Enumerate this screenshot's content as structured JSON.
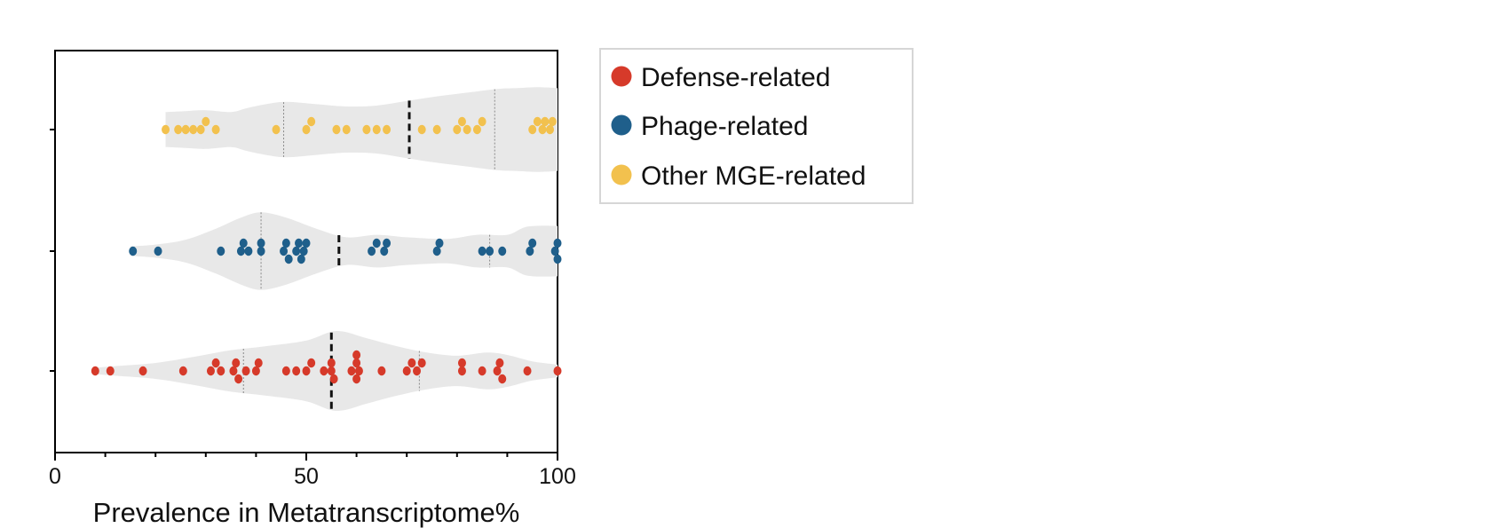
{
  "chart_data": {
    "type": "violin-swarm",
    "xlabel": "Prevalence in Metatranscriptome%",
    "ylabel": "",
    "xlim": [
      0,
      100
    ],
    "xticks": [
      "0",
      "50",
      "100"
    ],
    "grid": false,
    "legend_position": "right, outside plot",
    "series": [
      {
        "name": "Other MGE-related",
        "color": "#f2c14e",
        "median": 70.5,
        "q1": 45.5,
        "q3": 87.5,
        "points": [
          22,
          24.5,
          26,
          27.5,
          29,
          30,
          32,
          44,
          50,
          51,
          56,
          58,
          62,
          64,
          66,
          73,
          76,
          80,
          81,
          82,
          84,
          85,
          95,
          96,
          97,
          97.5,
          98.5,
          99
        ],
        "violin_profile": [
          [
            22,
            0.38
          ],
          [
            26,
            0.4
          ],
          [
            30,
            0.42
          ],
          [
            35,
            0.38
          ],
          [
            38,
            0.46
          ],
          [
            42,
            0.55
          ],
          [
            46,
            0.6
          ],
          [
            52,
            0.55
          ],
          [
            58,
            0.5
          ],
          [
            64,
            0.52
          ],
          [
            70,
            0.62
          ],
          [
            76,
            0.72
          ],
          [
            82,
            0.8
          ],
          [
            88,
            0.88
          ],
          [
            92,
            0.9
          ],
          [
            96,
            0.92
          ],
          [
            100,
            0.9
          ]
        ]
      },
      {
        "name": "Phage-related",
        "color": "#1f5f8b",
        "median": 56.5,
        "q1": 41,
        "q3": 86.5,
        "points": [
          15.5,
          20.5,
          33,
          37,
          37.5,
          38.5,
          41,
          41,
          45.5,
          46,
          46.5,
          48,
          48.5,
          49,
          49.5,
          50,
          63,
          64,
          65.5,
          66,
          76,
          76.5,
          85,
          86.5,
          89,
          94.5,
          95,
          99.5,
          100,
          100
        ],
        "violin_profile": [
          [
            15,
            0.12
          ],
          [
            20,
            0.16
          ],
          [
            26,
            0.28
          ],
          [
            32,
            0.55
          ],
          [
            37,
            0.82
          ],
          [
            41,
            0.95
          ],
          [
            46,
            0.82
          ],
          [
            52,
            0.55
          ],
          [
            58,
            0.34
          ],
          [
            64,
            0.4
          ],
          [
            70,
            0.34
          ],
          [
            78,
            0.3
          ],
          [
            84,
            0.4
          ],
          [
            90,
            0.4
          ],
          [
            94,
            0.6
          ],
          [
            100,
            0.62
          ]
        ]
      },
      {
        "name": "Defense-related",
        "color": "#d63a2a",
        "median": 55,
        "q1": 37.5,
        "q3": 72.5,
        "points": [
          8,
          11,
          17.5,
          25.5,
          31,
          32,
          33,
          35.5,
          36,
          36.5,
          38,
          40,
          40.5,
          46,
          48,
          50,
          51,
          53.5,
          55,
          55,
          55.5,
          59,
          60,
          60,
          60,
          60.5,
          65,
          70,
          71,
          72,
          73,
          81,
          81,
          85,
          88,
          88.5,
          89,
          94,
          100
        ],
        "violin_profile": [
          [
            8,
            0.08
          ],
          [
            12,
            0.12
          ],
          [
            20,
            0.2
          ],
          [
            28,
            0.36
          ],
          [
            35,
            0.52
          ],
          [
            42,
            0.62
          ],
          [
            50,
            0.76
          ],
          [
            56,
            1.0
          ],
          [
            62,
            0.82
          ],
          [
            68,
            0.62
          ],
          [
            74,
            0.46
          ],
          [
            80,
            0.38
          ],
          [
            86,
            0.46
          ],
          [
            90,
            0.4
          ],
          [
            95,
            0.24
          ],
          [
            100,
            0.16
          ]
        ]
      }
    ]
  }
}
